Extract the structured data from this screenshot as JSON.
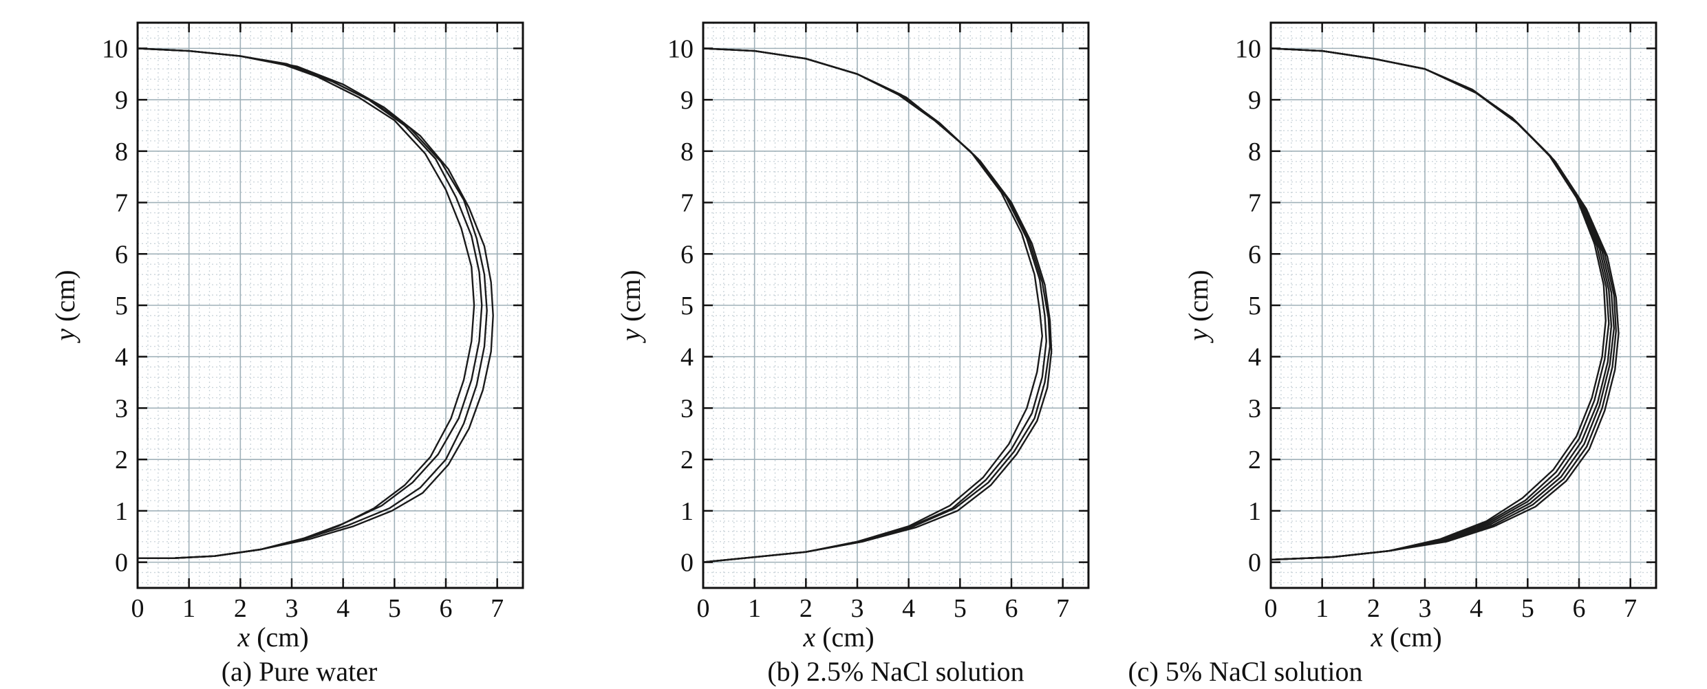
{
  "figure": {
    "panels": [
      {
        "caption": "(a) Pure water",
        "chart_data": {
          "type": "line",
          "title": "",
          "xlabel_var": "x",
          "xlabel_unit": " (cm)",
          "ylabel_var": "y",
          "ylabel_unit": " (cm)",
          "xlim": [
            0,
            7.5
          ],
          "ylim": [
            -0.5,
            10.5
          ],
          "xticks": [
            0,
            1,
            2,
            3,
            4,
            5,
            6,
            7
          ],
          "yticks": [
            0,
            1,
            2,
            3,
            4,
            5,
            6,
            7,
            8,
            9,
            10
          ],
          "grid": true,
          "series": [
            {
              "x": [
                0,
                1,
                2,
                2.8,
                3.5,
                4.3,
                5.0,
                5.6,
                6.0,
                6.3,
                6.5,
                6.55,
                6.5,
                6.35,
                6.1,
                5.7,
                5.2,
                4.6,
                3.9,
                3.2,
                2.4,
                1.5,
                0.7,
                0
              ],
              "y": [
                10,
                9.95,
                9.85,
                9.7,
                9.45,
                9.05,
                8.6,
                7.95,
                7.25,
                6.5,
                5.75,
                5.0,
                4.3,
                3.55,
                2.8,
                2.05,
                1.5,
                1.05,
                0.7,
                0.45,
                0.25,
                0.12,
                0.08,
                0.08
              ]
            },
            {
              "x": [
                0,
                1,
                2,
                2.9,
                3.7,
                4.5,
                5.2,
                5.8,
                6.2,
                6.5,
                6.65,
                6.7,
                6.65,
                6.5,
                6.25,
                5.85,
                5.35,
                4.75,
                4.0,
                3.25,
                2.4,
                1.5,
                0.7,
                0
              ],
              "y": [
                10,
                9.95,
                9.85,
                9.7,
                9.4,
                9.0,
                8.5,
                7.85,
                7.1,
                6.35,
                5.65,
                5.0,
                4.3,
                3.55,
                2.8,
                2.1,
                1.55,
                1.1,
                0.75,
                0.47,
                0.25,
                0.12,
                0.08,
                0.08
              ]
            },
            {
              "x": [
                0,
                1,
                2,
                3.0,
                3.8,
                4.6,
                5.3,
                5.9,
                6.35,
                6.6,
                6.75,
                6.8,
                6.75,
                6.6,
                6.35,
                6.0,
                5.5,
                4.9,
                4.1,
                3.3,
                2.4,
                1.5,
                0.7,
                0
              ],
              "y": [
                10,
                9.95,
                9.85,
                9.65,
                9.35,
                8.95,
                8.45,
                7.8,
                7.05,
                6.3,
                5.6,
                4.9,
                4.2,
                3.45,
                2.7,
                2.0,
                1.45,
                1.05,
                0.72,
                0.47,
                0.25,
                0.12,
                0.08,
                0.08
              ]
            },
            {
              "x": [
                0,
                1,
                2,
                3.1,
                4.0,
                4.8,
                5.5,
                6.05,
                6.45,
                6.75,
                6.88,
                6.92,
                6.88,
                6.72,
                6.45,
                6.05,
                5.55,
                4.95,
                4.2,
                3.35,
                2.4,
                1.5,
                0.7,
                0
              ],
              "y": [
                10,
                9.95,
                9.85,
                9.65,
                9.3,
                8.85,
                8.3,
                7.65,
                6.9,
                6.15,
                5.45,
                4.8,
                4.1,
                3.35,
                2.6,
                1.9,
                1.35,
                1.0,
                0.7,
                0.45,
                0.25,
                0.12,
                0.08,
                0.08
              ]
            }
          ]
        }
      },
      {
        "caption": "(b) 2.5% NaCl solution",
        "chart_data": {
          "type": "line",
          "title": "",
          "xlabel_var": "x",
          "xlabel_unit": " (cm)",
          "ylabel_var": "y",
          "ylabel_unit": " (cm)",
          "xlim": [
            0,
            7.5
          ],
          "ylim": [
            -0.5,
            10.5
          ],
          "xticks": [
            0,
            1,
            2,
            3,
            4,
            5,
            6,
            7
          ],
          "yticks": [
            0,
            1,
            2,
            3,
            4,
            5,
            6,
            7,
            8,
            9,
            10
          ],
          "grid": true,
          "series": [
            {
              "x": [
                0,
                1,
                2,
                3.0,
                3.8,
                4.5,
                5.2,
                5.8,
                6.2,
                6.45,
                6.55,
                6.6,
                6.5,
                6.3,
                5.95,
                5.45,
                4.8,
                4.0,
                3.0,
                2.0,
                1.0,
                0
              ],
              "y": [
                10,
                9.95,
                9.8,
                9.5,
                9.1,
                8.6,
                8.0,
                7.2,
                6.4,
                5.6,
                4.9,
                4.4,
                3.7,
                3.0,
                2.3,
                1.65,
                1.1,
                0.7,
                0.4,
                0.2,
                0.1,
                0.0
              ]
            },
            {
              "x": [
                0,
                1,
                2,
                3.0,
                3.85,
                4.6,
                5.3,
                5.9,
                6.3,
                6.55,
                6.65,
                6.68,
                6.6,
                6.4,
                6.0,
                5.5,
                4.85,
                4.05,
                3.05,
                2.0,
                1.0,
                0
              ],
              "y": [
                10,
                9.95,
                9.8,
                9.5,
                9.1,
                8.55,
                7.9,
                7.1,
                6.3,
                5.5,
                4.8,
                4.3,
                3.6,
                2.9,
                2.2,
                1.6,
                1.05,
                0.7,
                0.4,
                0.2,
                0.1,
                0.0
              ]
            },
            {
              "x": [
                0,
                1,
                2,
                3.0,
                3.9,
                4.65,
                5.35,
                5.95,
                6.35,
                6.6,
                6.72,
                6.75,
                6.65,
                6.45,
                6.05,
                5.55,
                4.9,
                4.1,
                3.1,
                2.0,
                1.0,
                0
              ],
              "y": [
                10,
                9.95,
                9.8,
                9.5,
                9.05,
                8.5,
                7.85,
                7.05,
                6.25,
                5.45,
                4.75,
                4.2,
                3.5,
                2.8,
                2.15,
                1.55,
                1.05,
                0.7,
                0.4,
                0.2,
                0.1,
                0.0
              ]
            },
            {
              "x": [
                0,
                1,
                2,
                3.0,
                3.95,
                4.7,
                5.4,
                6.0,
                6.4,
                6.65,
                6.75,
                6.78,
                6.7,
                6.5,
                6.1,
                5.6,
                4.95,
                4.15,
                3.1,
                2.0,
                1.0,
                0
              ],
              "y": [
                10,
                9.95,
                9.8,
                9.5,
                9.05,
                8.45,
                7.8,
                7.0,
                6.2,
                5.4,
                4.7,
                4.1,
                3.4,
                2.75,
                2.1,
                1.5,
                1.0,
                0.68,
                0.4,
                0.2,
                0.1,
                0.0
              ]
            }
          ]
        }
      },
      {
        "caption": "(c) 5% NaCl solution",
        "chart_data": {
          "type": "line",
          "title": "",
          "xlabel_var": "x",
          "xlabel_unit": " (cm)",
          "ylabel_var": "y",
          "ylabel_unit": " (cm)",
          "xlim": [
            0,
            7.5
          ],
          "ylim": [
            -0.5,
            10.5
          ],
          "xticks": [
            0,
            1,
            2,
            3,
            4,
            5,
            6,
            7
          ],
          "yticks": [
            0,
            1,
            2,
            3,
            4,
            5,
            6,
            7,
            8,
            9,
            10
          ],
          "grid": true,
          "series": [
            {
              "x": [
                0,
                1,
                2,
                3.0,
                3.9,
                4.7,
                5.4,
                5.95,
                6.3,
                6.48,
                6.52,
                6.45,
                6.25,
                5.95,
                5.5,
                4.9,
                4.2,
                3.3,
                2.3,
                1.2,
                0
              ],
              "y": [
                10,
                9.95,
                9.8,
                9.6,
                9.2,
                8.65,
                7.95,
                7.1,
                6.2,
                5.4,
                4.7,
                4.0,
                3.2,
                2.45,
                1.8,
                1.25,
                0.8,
                0.45,
                0.22,
                0.1,
                0.05
              ]
            },
            {
              "x": [
                0,
                1,
                2,
                3.0,
                3.92,
                4.72,
                5.42,
                5.98,
                6.35,
                6.53,
                6.58,
                6.5,
                6.3,
                6.0,
                5.55,
                4.95,
                4.22,
                3.32,
                2.3,
                1.2,
                0
              ],
              "y": [
                10,
                9.95,
                9.8,
                9.6,
                9.2,
                8.62,
                7.92,
                7.05,
                6.15,
                5.35,
                4.65,
                3.95,
                3.15,
                2.4,
                1.75,
                1.2,
                0.78,
                0.44,
                0.22,
                0.1,
                0.05
              ]
            },
            {
              "x": [
                0,
                1,
                2,
                3.0,
                3.94,
                4.75,
                5.45,
                6.02,
                6.4,
                6.58,
                6.63,
                6.56,
                6.36,
                6.05,
                5.6,
                5.0,
                4.25,
                3.35,
                2.3,
                1.2,
                0
              ],
              "y": [
                10,
                9.95,
                9.8,
                9.6,
                9.18,
                8.6,
                7.9,
                7.0,
                6.1,
                5.3,
                4.6,
                3.9,
                3.1,
                2.35,
                1.7,
                1.18,
                0.76,
                0.43,
                0.22,
                0.1,
                0.05
              ]
            },
            {
              "x": [
                0,
                1,
                2,
                3.0,
                3.96,
                4.78,
                5.48,
                6.06,
                6.45,
                6.63,
                6.68,
                6.6,
                6.4,
                6.1,
                5.65,
                5.05,
                4.28,
                3.38,
                2.3,
                1.2,
                0
              ],
              "y": [
                10,
                9.95,
                9.8,
                9.6,
                9.17,
                8.57,
                7.86,
                6.96,
                6.05,
                5.25,
                4.55,
                3.85,
                3.05,
                2.3,
                1.66,
                1.15,
                0.74,
                0.42,
                0.22,
                0.1,
                0.05
              ]
            },
            {
              "x": [
                0,
                1,
                2,
                3.0,
                3.98,
                4.8,
                5.52,
                6.1,
                6.5,
                6.68,
                6.72,
                6.65,
                6.45,
                6.15,
                5.7,
                5.1,
                4.32,
                3.4,
                2.3,
                1.2,
                0
              ],
              "y": [
                10,
                9.95,
                9.8,
                9.6,
                9.15,
                8.55,
                7.82,
                6.92,
                6.0,
                5.2,
                4.5,
                3.8,
                3.0,
                2.25,
                1.62,
                1.12,
                0.72,
                0.41,
                0.22,
                0.1,
                0.05
              ]
            },
            {
              "x": [
                0,
                1,
                2,
                3.0,
                4.0,
                4.83,
                5.55,
                6.14,
                6.55,
                6.72,
                6.77,
                6.7,
                6.5,
                6.2,
                5.75,
                5.15,
                4.35,
                3.42,
                2.3,
                1.2,
                0
              ],
              "y": [
                10,
                9.95,
                9.8,
                9.6,
                9.13,
                8.52,
                7.78,
                6.88,
                5.95,
                5.15,
                4.45,
                3.75,
                2.95,
                2.2,
                1.58,
                1.08,
                0.7,
                0.4,
                0.22,
                0.1,
                0.05
              ]
            }
          ]
        }
      }
    ]
  }
}
